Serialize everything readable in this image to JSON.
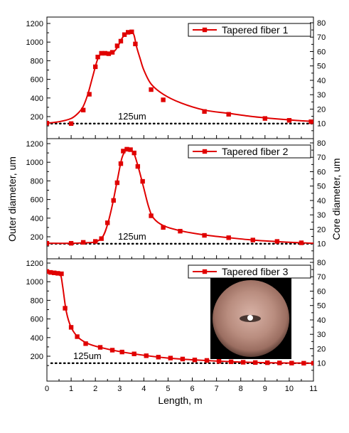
{
  "chart_data": {
    "type": "line",
    "xlabel": "Length, m",
    "ylabel_left": "Outer diameter, um",
    "ylabel_right": "Core diameter, um",
    "xlim": [
      0,
      11
    ],
    "xticks": [
      0,
      1,
      2,
      3,
      4,
      5,
      6,
      7,
      8,
      9,
      10,
      11
    ],
    "ylim_left": [
      100,
      1250
    ],
    "yticks_left": [
      200,
      400,
      600,
      800,
      1000,
      1200
    ],
    "ylim_right": [
      0,
      80
    ],
    "yticks_right": [
      10,
      20,
      30,
      40,
      50,
      60,
      70,
      80
    ],
    "reference_line": {
      "value": 125,
      "label": "125um",
      "style": "dotted"
    },
    "series_color": "#e00000",
    "panels": [
      {
        "legend": "Tapered fiber 1",
        "legend_position": "top-right",
        "markers": [
          [
            0,
            130
          ],
          [
            1.0,
            125
          ],
          [
            1.5,
            270
          ],
          [
            1.75,
            440
          ],
          [
            2.0,
            735
          ],
          [
            2.1,
            840
          ],
          [
            2.25,
            880
          ],
          [
            2.4,
            880
          ],
          [
            2.55,
            875
          ],
          [
            2.7,
            890
          ],
          [
            2.9,
            960
          ],
          [
            3.05,
            1010
          ],
          [
            3.2,
            1080
          ],
          [
            3.35,
            1105
          ],
          [
            3.5,
            1110
          ],
          [
            3.65,
            980
          ],
          [
            4.3,
            490
          ],
          [
            4.8,
            380
          ],
          [
            6.5,
            255
          ],
          [
            7.5,
            225
          ],
          [
            9.0,
            180
          ],
          [
            10.0,
            160
          ],
          [
            10.9,
            145
          ]
        ],
        "curve": [
          [
            0,
            130
          ],
          [
            0.5,
            145
          ],
          [
            1.0,
            180
          ],
          [
            1.3,
            240
          ],
          [
            1.5,
            310
          ],
          [
            1.7,
            450
          ],
          [
            1.9,
            640
          ],
          [
            2.1,
            820
          ],
          [
            2.3,
            885
          ],
          [
            2.5,
            880
          ],
          [
            2.7,
            885
          ],
          [
            2.9,
            940
          ],
          [
            3.1,
            1040
          ],
          [
            3.3,
            1100
          ],
          [
            3.5,
            1110
          ],
          [
            3.6,
            1070
          ],
          [
            3.7,
            950
          ],
          [
            3.85,
            820
          ],
          [
            4.0,
            700
          ],
          [
            4.3,
            550
          ],
          [
            4.8,
            440
          ],
          [
            5.5,
            350
          ],
          [
            6.5,
            270
          ],
          [
            7.5,
            235
          ],
          [
            8.5,
            200
          ],
          [
            9.5,
            175
          ],
          [
            10.5,
            155
          ],
          [
            11,
            148
          ]
        ]
      },
      {
        "legend": "Tapered fiber 2",
        "legend_position": "top-right",
        "markers": [
          [
            0,
            130
          ],
          [
            1.0,
            130
          ],
          [
            1.5,
            140
          ],
          [
            2.0,
            150
          ],
          [
            2.25,
            180
          ],
          [
            2.5,
            350
          ],
          [
            2.75,
            590
          ],
          [
            2.9,
            780
          ],
          [
            3.05,
            985
          ],
          [
            3.15,
            1120
          ],
          [
            3.3,
            1140
          ],
          [
            3.45,
            1135
          ],
          [
            3.6,
            1100
          ],
          [
            3.75,
            955
          ],
          [
            3.95,
            795
          ],
          [
            4.3,
            425
          ],
          [
            4.8,
            300
          ],
          [
            5.5,
            260
          ],
          [
            6.5,
            215
          ],
          [
            7.5,
            190
          ],
          [
            8.5,
            165
          ],
          [
            9.5,
            150
          ],
          [
            10.5,
            135
          ]
        ],
        "curve": [
          [
            0,
            130
          ],
          [
            1.0,
            130
          ],
          [
            1.5,
            135
          ],
          [
            2.0,
            145
          ],
          [
            2.3,
            200
          ],
          [
            2.5,
            330
          ],
          [
            2.7,
            540
          ],
          [
            2.9,
            800
          ],
          [
            3.1,
            1050
          ],
          [
            3.3,
            1140
          ],
          [
            3.45,
            1135
          ],
          [
            3.6,
            1090
          ],
          [
            3.8,
            920
          ],
          [
            4.0,
            720
          ],
          [
            4.2,
            520
          ],
          [
            4.4,
            400
          ],
          [
            4.8,
            320
          ],
          [
            5.5,
            265
          ],
          [
            6.5,
            220
          ],
          [
            7.5,
            190
          ],
          [
            8.5,
            165
          ],
          [
            9.5,
            148
          ],
          [
            10.5,
            135
          ],
          [
            11,
            130
          ]
        ]
      },
      {
        "legend": "Tapered fiber 3",
        "legend_position": "top-right",
        "markers": [
          [
            0,
            1110
          ],
          [
            0.15,
            1100
          ],
          [
            0.3,
            1095
          ],
          [
            0.45,
            1090
          ],
          [
            0.6,
            1085
          ],
          [
            0.75,
            715
          ],
          [
            1.0,
            510
          ],
          [
            1.25,
            410
          ],
          [
            1.6,
            335
          ],
          [
            2.2,
            295
          ],
          [
            2.7,
            265
          ],
          [
            3.1,
            245
          ],
          [
            3.6,
            225
          ],
          [
            4.1,
            205
          ],
          [
            4.6,
            190
          ],
          [
            5.1,
            180
          ],
          [
            5.6,
            170
          ],
          [
            6.1,
            160
          ],
          [
            6.6,
            155
          ],
          [
            7.1,
            145
          ],
          [
            7.6,
            140
          ],
          [
            8.1,
            135
          ],
          [
            8.6,
            132
          ],
          [
            9.1,
            130
          ],
          [
            9.6,
            128
          ],
          [
            10.1,
            126
          ],
          [
            10.6,
            125
          ],
          [
            11,
            125
          ]
        ],
        "curve": [
          [
            0,
            1110
          ],
          [
            0.3,
            1100
          ],
          [
            0.55,
            1080
          ],
          [
            0.65,
            950
          ],
          [
            0.8,
            680
          ],
          [
            1.0,
            510
          ],
          [
            1.3,
            400
          ],
          [
            1.7,
            335
          ],
          [
            2.2,
            295
          ],
          [
            3.0,
            250
          ],
          [
            4.0,
            210
          ],
          [
            5.0,
            180
          ],
          [
            6.0,
            162
          ],
          [
            7.0,
            148
          ],
          [
            8.0,
            137
          ],
          [
            9.0,
            130
          ],
          [
            10.0,
            127
          ],
          [
            11,
            125
          ]
        ]
      }
    ]
  }
}
